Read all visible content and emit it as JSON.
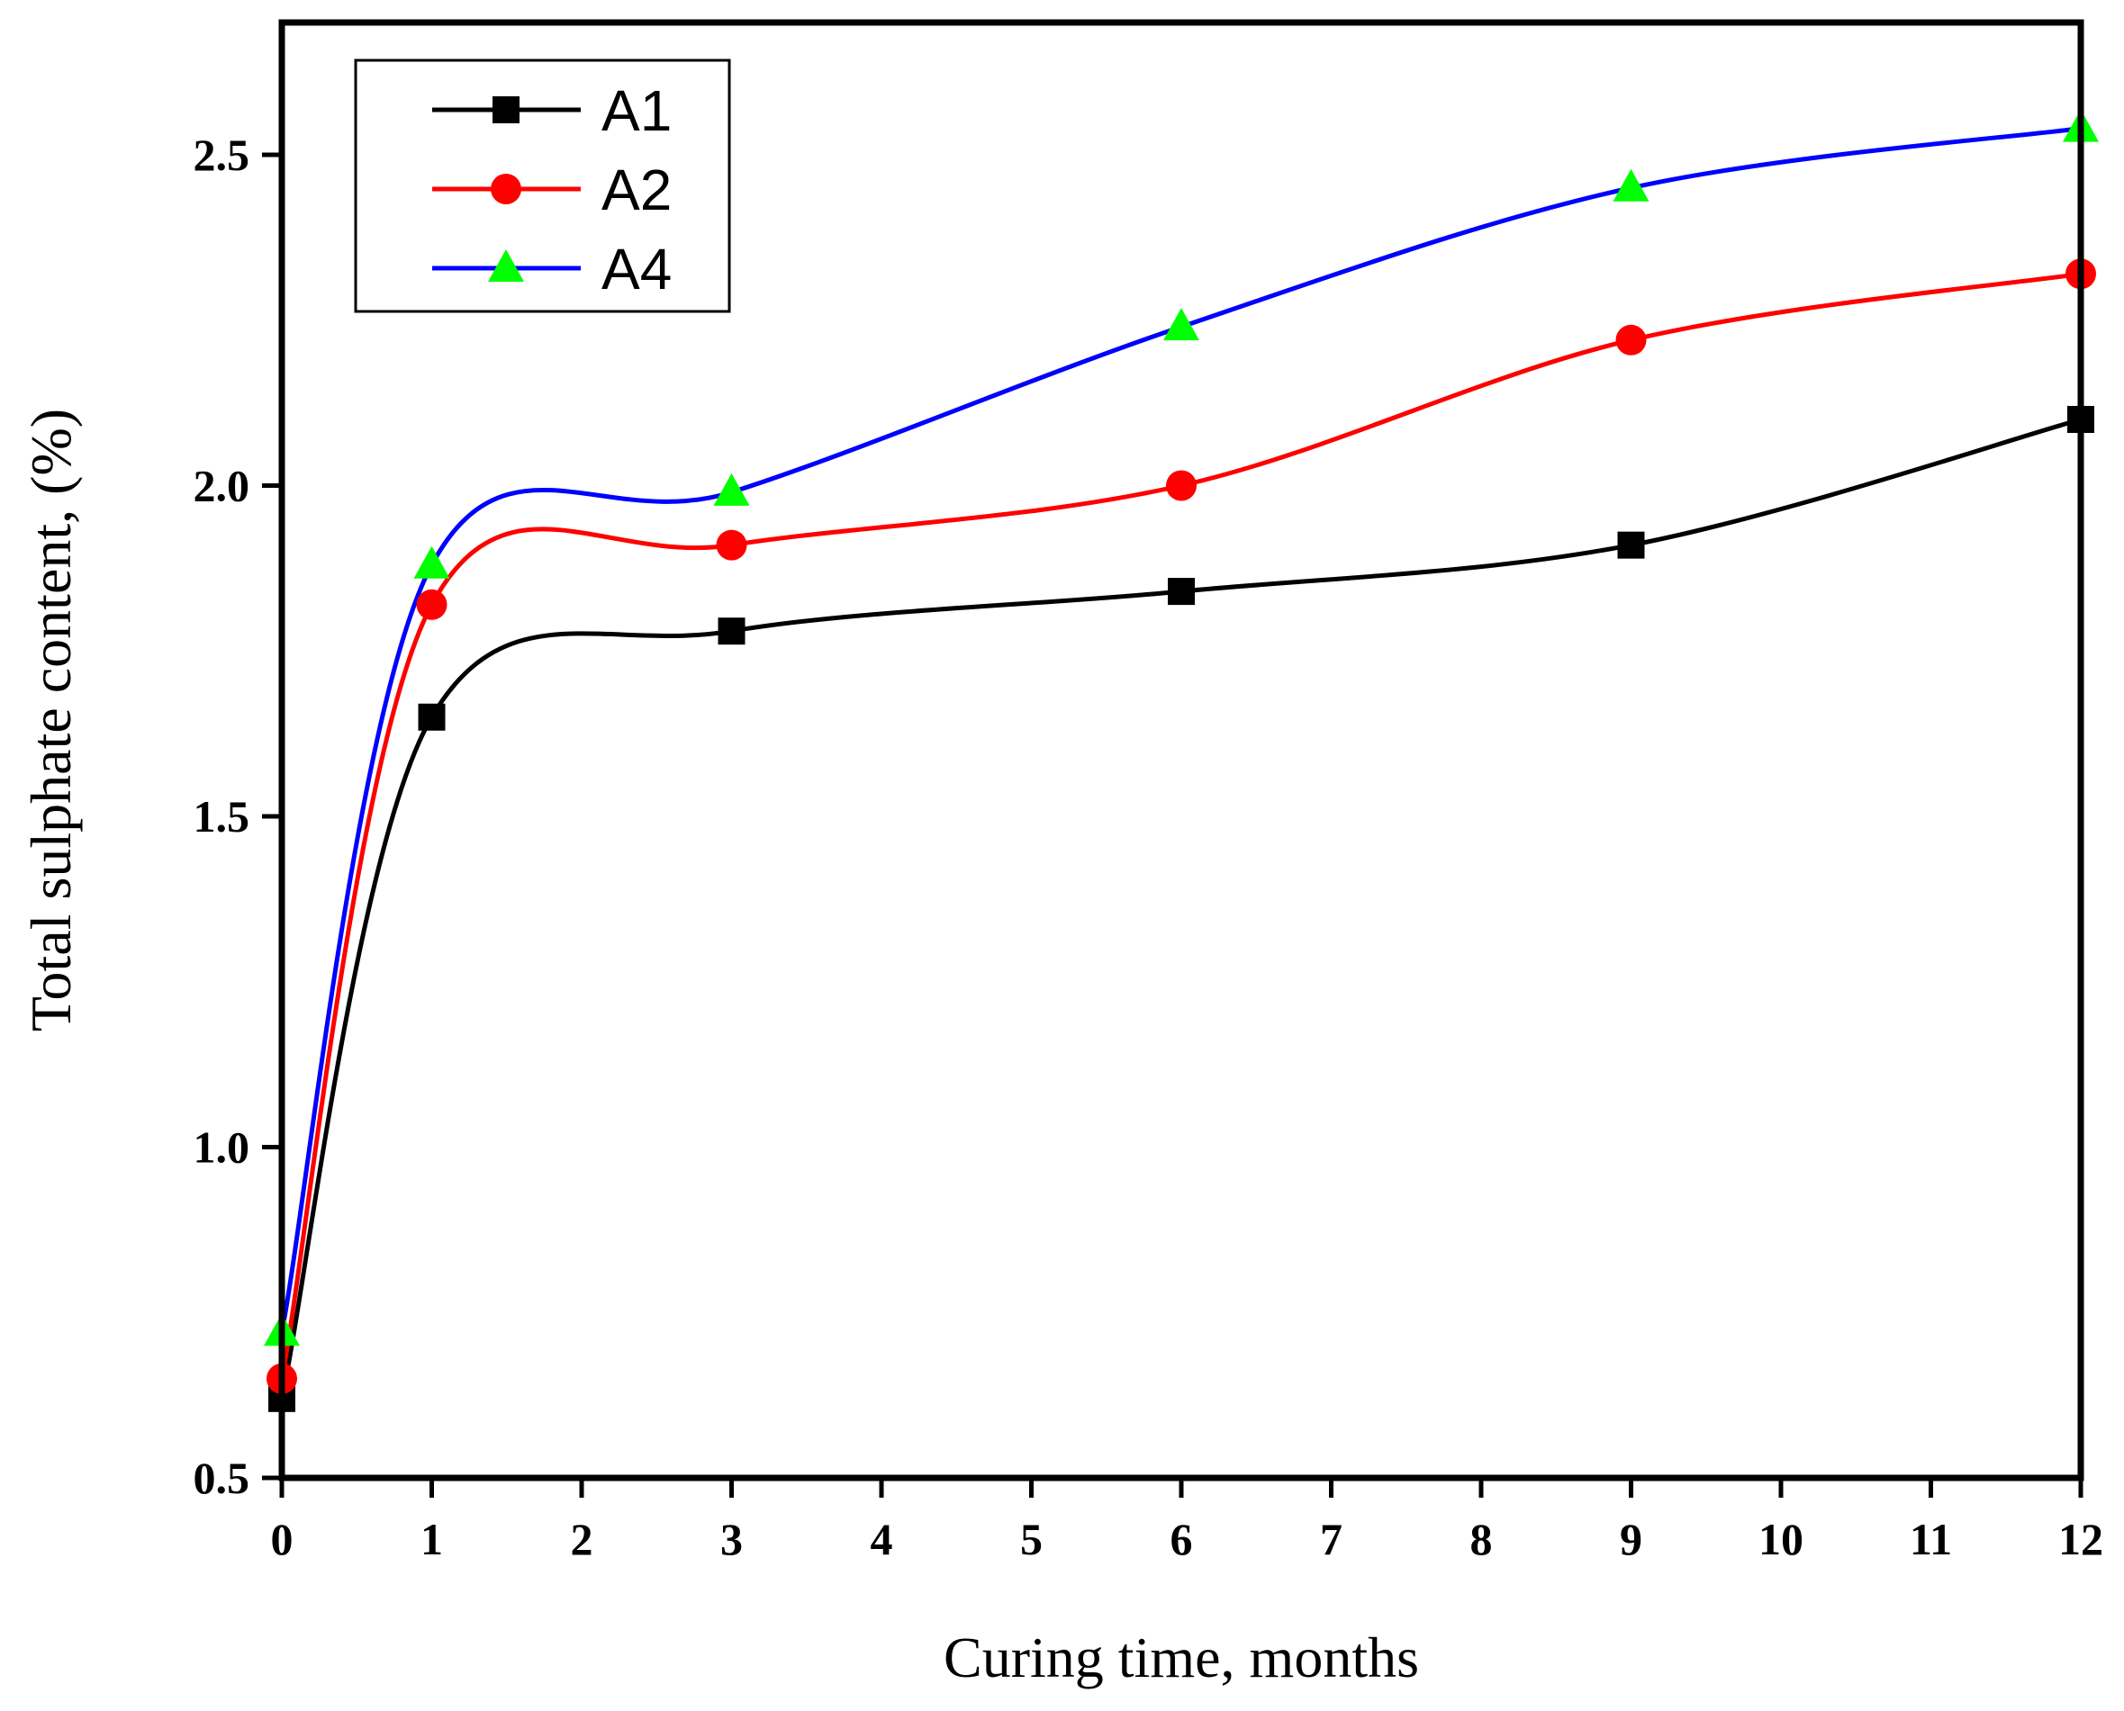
{
  "chart_data": {
    "type": "line",
    "title": "",
    "xlabel": "Curing time, months",
    "ylabel": "Total sulphate content, (%)",
    "xlim": [
      0,
      12
    ],
    "ylim": [
      0.5,
      2.7
    ],
    "xticks": [
      0,
      1,
      2,
      3,
      4,
      5,
      6,
      7,
      8,
      9,
      10,
      11,
      12
    ],
    "xtick_labels": [
      "0",
      "1",
      "2",
      "3",
      "4",
      "5",
      "6",
      "7",
      "8",
      "9",
      "10",
      "11",
      "12"
    ],
    "yticks": [
      0.5,
      1.0,
      1.5,
      2.0,
      2.5
    ],
    "ytick_labels": [
      "0.5",
      "1.0",
      "1.5",
      "2.0",
      "2.5"
    ],
    "grid": false,
    "legend_position": "top-left",
    "x": [
      0,
      1,
      3,
      6,
      9,
      12
    ],
    "series": [
      {
        "name": "A1",
        "values": [
          0.62,
          1.65,
          1.78,
          1.84,
          1.91,
          2.1
        ],
        "line_color": "#000000",
        "marker": "square",
        "marker_color": "#000000"
      },
      {
        "name": "A2",
        "values": [
          0.65,
          1.82,
          1.91,
          2.0,
          2.22,
          2.32
        ],
        "line_color": "#ff0000",
        "marker": "circle",
        "marker_color": "#ff0000"
      },
      {
        "name": "A4",
        "values": [
          0.72,
          1.88,
          1.99,
          2.24,
          2.45,
          2.54
        ],
        "line_color": "#0000ff",
        "marker": "triangle",
        "marker_color": "#00ff00"
      }
    ]
  }
}
